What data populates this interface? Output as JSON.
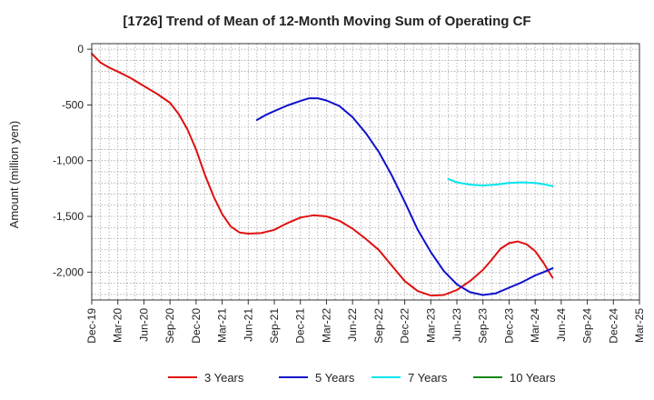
{
  "chart_data": {
    "type": "line",
    "title": "[1726]  Trend of Mean of 12-Month Moving Sum of Operating CF",
    "xlabel": "",
    "ylabel": "Amount (million yen)",
    "ylim": [
      -2250,
      50
    ],
    "yticks": [
      0,
      -500,
      -1000,
      -1500,
      -2000
    ],
    "ytick_labels": [
      "0",
      "-500",
      "-1,000",
      "-1,500",
      "-2,000"
    ],
    "categories": [
      "Dec-19",
      "Mar-20",
      "Jun-20",
      "Sep-20",
      "Dec-20",
      "Mar-21",
      "Jun-21",
      "Sep-21",
      "Dec-21",
      "Mar-22",
      "Jun-22",
      "Sep-22",
      "Dec-22",
      "Mar-23",
      "Jun-23",
      "Sep-23",
      "Dec-23",
      "Mar-24",
      "Jun-24",
      "Sep-24",
      "Dec-24",
      "Mar-25"
    ],
    "grid": true,
    "legend_position": "bottom",
    "series": [
      {
        "name": "3 Years",
        "color": "#e01010",
        "points": [
          [
            0,
            -40
          ],
          [
            0.33,
            -120
          ],
          [
            0.67,
            -165
          ],
          [
            1,
            -200
          ],
          [
            1.5,
            -260
          ],
          [
            2,
            -330
          ],
          [
            2.5,
            -400
          ],
          [
            3,
            -480
          ],
          [
            3.33,
            -580
          ],
          [
            3.67,
            -720
          ],
          [
            4,
            -900
          ],
          [
            4.33,
            -1120
          ],
          [
            4.67,
            -1320
          ],
          [
            5,
            -1480
          ],
          [
            5.33,
            -1590
          ],
          [
            5.67,
            -1645
          ],
          [
            6,
            -1655
          ],
          [
            6.5,
            -1650
          ],
          [
            7,
            -1620
          ],
          [
            7.5,
            -1560
          ],
          [
            8,
            -1510
          ],
          [
            8.5,
            -1490
          ],
          [
            9,
            -1500
          ],
          [
            9.5,
            -1540
          ],
          [
            10,
            -1610
          ],
          [
            10.5,
            -1700
          ],
          [
            11,
            -1800
          ],
          [
            11.5,
            -1940
          ],
          [
            12,
            -2080
          ],
          [
            12.5,
            -2170
          ],
          [
            13,
            -2210
          ],
          [
            13.5,
            -2205
          ],
          [
            14,
            -2160
          ],
          [
            14.5,
            -2080
          ],
          [
            15,
            -1980
          ],
          [
            15.33,
            -1890
          ],
          [
            15.67,
            -1790
          ],
          [
            16,
            -1740
          ],
          [
            16.33,
            -1725
          ],
          [
            16.67,
            -1750
          ],
          [
            17,
            -1810
          ],
          [
            17.33,
            -1920
          ],
          [
            17.67,
            -2050
          ]
        ]
      },
      {
        "name": "5 Years",
        "color": "#1010cc",
        "points": [
          [
            6.33,
            -635
          ],
          [
            6.67,
            -590
          ],
          [
            7,
            -555
          ],
          [
            7.5,
            -505
          ],
          [
            8,
            -465
          ],
          [
            8.33,
            -440
          ],
          [
            8.67,
            -440
          ],
          [
            9,
            -460
          ],
          [
            9.5,
            -510
          ],
          [
            10,
            -610
          ],
          [
            10.5,
            -750
          ],
          [
            11,
            -920
          ],
          [
            11.5,
            -1130
          ],
          [
            12,
            -1370
          ],
          [
            12.5,
            -1620
          ],
          [
            13,
            -1820
          ],
          [
            13.5,
            -1990
          ],
          [
            14,
            -2110
          ],
          [
            14.5,
            -2180
          ],
          [
            15,
            -2205
          ],
          [
            15.5,
            -2190
          ],
          [
            16,
            -2140
          ],
          [
            16.5,
            -2090
          ],
          [
            17,
            -2030
          ],
          [
            17.33,
            -2000
          ],
          [
            17.67,
            -1965
          ]
        ]
      },
      {
        "name": "7 Years",
        "color": "#00e5ee",
        "points": [
          [
            13.67,
            -1165
          ],
          [
            14,
            -1195
          ],
          [
            14.5,
            -1215
          ],
          [
            15,
            -1222
          ],
          [
            15.5,
            -1215
          ],
          [
            16,
            -1200
          ],
          [
            16.5,
            -1195
          ],
          [
            17,
            -1200
          ],
          [
            17.33,
            -1212
          ],
          [
            17.67,
            -1228
          ]
        ]
      },
      {
        "name": "10 Years",
        "color": "#118811",
        "points": []
      }
    ]
  }
}
